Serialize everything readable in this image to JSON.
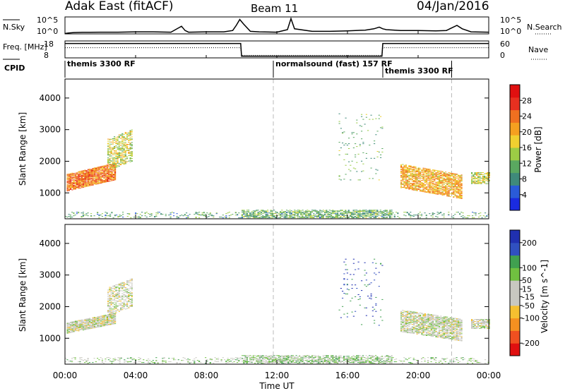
{
  "header": {
    "station": "Adak East (fitACF)",
    "beam": "Beam 11",
    "date": "04/Jan/2016"
  },
  "time_axis": {
    "xlabel": "Time UT",
    "ticks": [
      "00:00",
      "04:00",
      "08:00",
      "12:00",
      "16:00",
      "20:00",
      "00:00"
    ],
    "range_hours": [
      0,
      24
    ]
  },
  "chart_data": [
    {
      "type": "line",
      "panel": "noise",
      "left_label": "N.Sky",
      "right_label": "N.Search",
      "left_ticks": [
        "10^5",
        "10^0"
      ],
      "right_ticks": [
        "10^5",
        "10^0"
      ],
      "x": [
        0,
        0.2,
        0.5,
        1,
        2,
        3,
        4,
        5,
        6,
        6.6,
        6.8,
        7,
        8,
        9,
        9.5,
        9.7,
        9.9,
        10.1,
        10.5,
        11,
        12,
        12.6,
        12.8,
        13,
        14,
        15,
        16,
        17,
        17.5,
        17.8,
        18,
        18.2,
        19,
        20,
        21,
        21.6,
        21.9,
        22.2,
        22.5,
        23,
        24
      ],
      "series": [
        {
          "line": "solid",
          "values": [
            0.02,
            0.05,
            0.08,
            0.09,
            0.1,
            0.1,
            0.12,
            0.12,
            0.1,
            0.45,
            0.2,
            0.1,
            0.12,
            0.12,
            0.2,
            0.5,
            0.85,
            0.6,
            0.15,
            0.12,
            0.1,
            0.25,
            0.9,
            0.3,
            0.15,
            0.15,
            0.18,
            0.22,
            0.3,
            0.4,
            0.3,
            0.25,
            0.2,
            0.2,
            0.18,
            0.2,
            0.35,
            0.5,
            0.3,
            0.12,
            0.1
          ]
        }
      ]
    },
    {
      "type": "line",
      "panel": "frequency",
      "left_label": "Freq. [MHz]",
      "right_label": "Nave",
      "left_ticks": [
        "18",
        "8"
      ],
      "right_ticks": [
        "60",
        "0"
      ],
      "x": [
        0,
        9.95,
        10.0,
        17.95,
        18.0,
        24
      ],
      "series": [
        {
          "line": "solid",
          "name": "Freq",
          "values": [
            0.85,
            0.85,
            0.1,
            0.1,
            0.85,
            0.85
          ]
        },
        {
          "line": "dotted",
          "name": "Nave",
          "values": [
            0.6,
            0.6,
            0.15,
            0.15,
            0.6,
            0.6
          ]
        }
      ]
    },
    {
      "type": "table",
      "panel": "cpid",
      "left_label": "CPID",
      "segments": [
        {
          "label": "themis 3300 RF",
          "start": 0,
          "end": 11.8
        },
        {
          "label": "normalsound (fast) 157 RF",
          "start": 11.8,
          "end": 18
        },
        {
          "label": "themis 3300 RF",
          "start": 18,
          "end": 21.9
        }
      ]
    },
    {
      "type": "heatmap",
      "panel": "power",
      "ylabel": "Slant Range [km]",
      "yticks": [
        1000,
        2000,
        3000,
        4000
      ],
      "ylim": [
        180,
        4600
      ],
      "colorbar_label": "Power [dB]",
      "colorbar_ticks": [
        4,
        8,
        12,
        16,
        20,
        24,
        28
      ],
      "colorbar_range": [
        0,
        32
      ],
      "colors": [
        "#1a2be0",
        "#2a5bd8",
        "#3f8a7a",
        "#5aa860",
        "#9ccc45",
        "#f0d030",
        "#f5a020",
        "#f07020",
        "#e83020",
        "#e01010"
      ],
      "patches": [
        {
          "t0": 0.1,
          "t1": 2.8,
          "r0": 1050,
          "r1": 1580,
          "slope_r": 350,
          "intensity": 0.75,
          "density": 0.9
        },
        {
          "t0": 2.4,
          "t1": 3.8,
          "r0": 1700,
          "r1": 2700,
          "slope_r": 300,
          "intensity": 0.5,
          "density": 0.55
        },
        {
          "t0": 19.0,
          "t1": 22.5,
          "r0": 1150,
          "r1": 1900,
          "slope_r": -350,
          "intensity": 0.65,
          "density": 0.75
        },
        {
          "t0": 23.0,
          "t1": 24.0,
          "r0": 1280,
          "r1": 1650,
          "slope_r": 0,
          "intensity": 0.5,
          "density": 0.7
        },
        {
          "t0": 10.0,
          "t1": 18.5,
          "r0": 200,
          "r1": 450,
          "slope_r": 0,
          "intensity": 0.35,
          "density": 0.55
        },
        {
          "t0": 0.0,
          "t1": 24.0,
          "r0": 200,
          "r1": 380,
          "slope_r": 0,
          "intensity": 0.3,
          "density": 0.18
        },
        {
          "t0": 15.5,
          "t1": 18.0,
          "r0": 1400,
          "r1": 3500,
          "slope_r": 0,
          "intensity": 0.35,
          "density": 0.04
        }
      ]
    },
    {
      "type": "heatmap",
      "panel": "velocity",
      "ylabel": "Slant Range [km]",
      "yticks": [
        1000,
        2000,
        3000,
        4000
      ],
      "ylim": [
        180,
        4600
      ],
      "colorbar_label": "Velocity [m s^-1]",
      "colorbar_ticks": [
        200,
        100,
        50,
        15,
        -15,
        -50,
        -100,
        -200
      ],
      "colorbar_range": [
        -250,
        250
      ],
      "colors": [
        "#e01010",
        "#f05020",
        "#f59020",
        "#f5c030",
        "#c8c8c0",
        "#c8c8c0",
        "#70c040",
        "#40a050",
        "#3050c0",
        "#2030b0"
      ],
      "patches": [
        {
          "t0": 0.1,
          "t1": 2.8,
          "r0": 1150,
          "r1": 1500,
          "slope_r": 300,
          "intensity": 0.5,
          "density": 0.9
        },
        {
          "t0": 2.4,
          "t1": 3.8,
          "r0": 1700,
          "r1": 2600,
          "slope_r": 300,
          "intensity": 0.5,
          "density": 0.5
        },
        {
          "t0": 19.0,
          "t1": 22.5,
          "r0": 1200,
          "r1": 1900,
          "slope_r": -300,
          "intensity": 0.52,
          "density": 0.75
        },
        {
          "t0": 23.0,
          "t1": 24.0,
          "r0": 1300,
          "r1": 1600,
          "slope_r": 0,
          "intensity": 0.5,
          "density": 0.7
        },
        {
          "t0": 10.0,
          "t1": 18.5,
          "r0": 200,
          "r1": 450,
          "slope_r": 0,
          "intensity": 0.62,
          "density": 0.55
        },
        {
          "t0": 0.0,
          "t1": 24.0,
          "r0": 200,
          "r1": 380,
          "slope_r": 0,
          "intensity": 0.6,
          "density": 0.2
        },
        {
          "t0": 15.5,
          "t1": 18.0,
          "r0": 1400,
          "r1": 3500,
          "slope_r": 0,
          "intensity": 0.9,
          "density": 0.04
        }
      ]
    }
  ]
}
